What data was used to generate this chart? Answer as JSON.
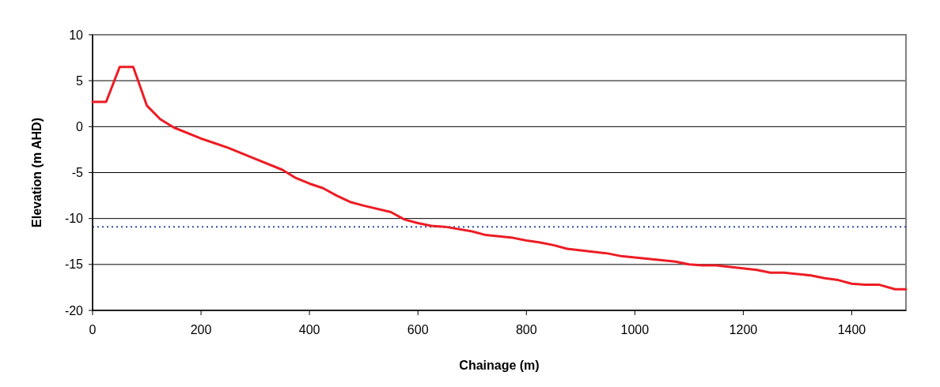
{
  "chart_data": {
    "type": "line",
    "xlabel": "Chainage (m)",
    "ylabel": "Elevation (m AHD)",
    "x": [
      0,
      25,
      50,
      75,
      100,
      125,
      150,
      200,
      225,
      250,
      300,
      350,
      375,
      400,
      425,
      450,
      475,
      500,
      550,
      575,
      600,
      625,
      650,
      700,
      725,
      775,
      800,
      825,
      850,
      875,
      950,
      975,
      1025,
      1075,
      1100,
      1125,
      1150,
      1225,
      1250,
      1275,
      1325,
      1350,
      1375,
      1400,
      1425,
      1450,
      1480,
      1500
    ],
    "series": [
      {
        "color": "#ed1c24",
        "values": [
          2.7,
          2.7,
          6.5,
          6.5,
          2.3,
          0.8,
          -0.1,
          -1.3,
          -1.8,
          -2.3,
          -3.5,
          -4.7,
          -5.6,
          -6.2,
          -6.7,
          -7.5,
          -8.2,
          -8.6,
          -9.3,
          -10.1,
          -10.5,
          -10.8,
          -10.9,
          -11.4,
          -11.8,
          -12.1,
          -12.4,
          -12.6,
          -12.9,
          -13.3,
          -13.8,
          -14.1,
          -14.4,
          -14.7,
          -15.0,
          -15.1,
          -15.1,
          -15.6,
          -15.9,
          -15.9,
          -16.2,
          -16.5,
          -16.7,
          -17.1,
          -17.2,
          -17.2,
          -17.7,
          -17.7
        ]
      }
    ],
    "xlim": [
      0,
      1500
    ],
    "xticks": [
      0,
      200,
      400,
      600,
      800,
      1000,
      1200,
      1400
    ],
    "ylim": [
      -20,
      10
    ],
    "yticks": [
      -20,
      -15,
      -10,
      -5,
      0,
      5,
      10
    ],
    "grid": "y",
    "marker": "none",
    "line_style": "solid",
    "ref_lines": [
      {
        "axis": "y",
        "value": -10.9,
        "color": "#2e4fa3",
        "line_style": "dotted"
      }
    ]
  }
}
